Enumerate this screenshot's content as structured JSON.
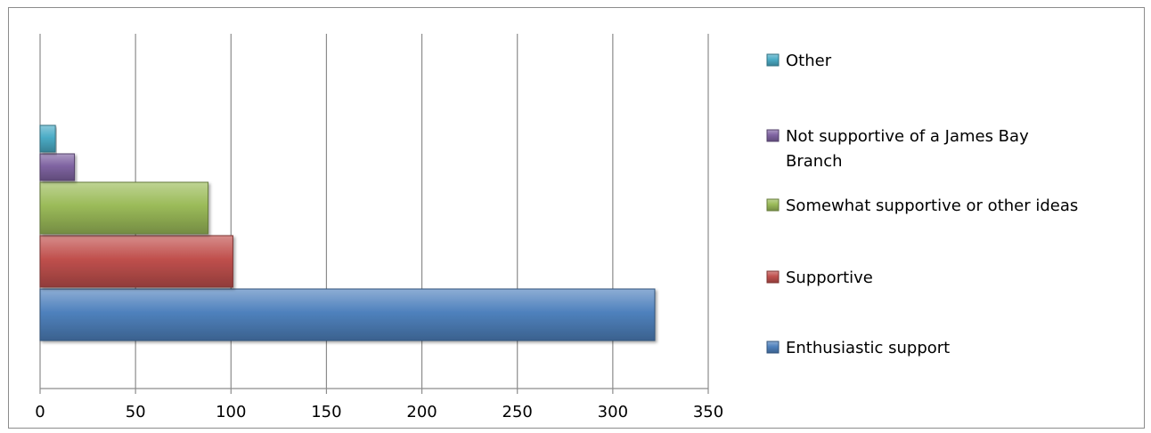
{
  "chart_data": {
    "type": "bar",
    "orientation": "horizontal",
    "categories": [
      "Enthusiastic support",
      "Supportive",
      "Somewhat supportive or other ideas",
      "Not supportive of a James Bay Branch",
      "Other"
    ],
    "values": [
      322,
      101,
      88,
      18,
      8
    ],
    "colors": [
      "#4f81bd",
      "#c0504d",
      "#9bbb59",
      "#8064a2",
      "#4bacc6"
    ],
    "legend": [
      "Other",
      [
        "Not supportive of a James Bay",
        "Branch"
      ],
      "Somewhat supportive or other ideas",
      "Supportive",
      "Enthusiastic support"
    ],
    "legend_placement": "right",
    "xlim": [
      0,
      350
    ],
    "x_ticks": [
      "0",
      "50",
      "100",
      "150",
      "200",
      "250",
      "300",
      "350"
    ],
    "grid": true,
    "title": "",
    "xlabel": "",
    "ylabel": ""
  }
}
